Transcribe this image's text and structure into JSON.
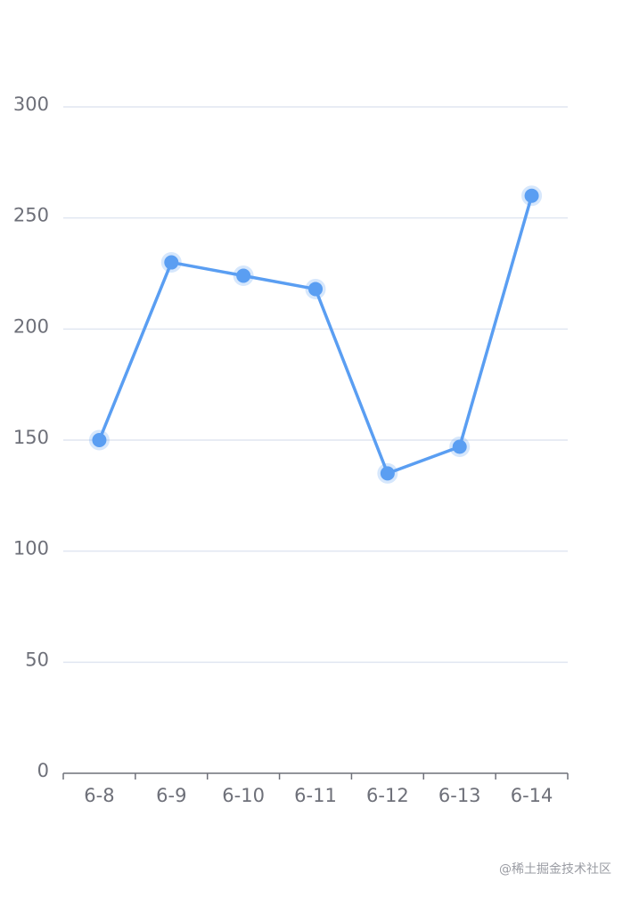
{
  "chart_data": {
    "type": "line",
    "categories": [
      "6-8",
      "6-9",
      "6-10",
      "6-11",
      "6-12",
      "6-13",
      "6-14"
    ],
    "values": [
      150,
      230,
      224,
      218,
      135,
      147,
      260
    ],
    "color": "#5a9ef2",
    "ylim": [
      0,
      300
    ],
    "yticks": [
      0,
      50,
      100,
      150,
      200,
      250,
      300
    ],
    "grid": true
  },
  "watermark": "@稀土掘金技术社区"
}
